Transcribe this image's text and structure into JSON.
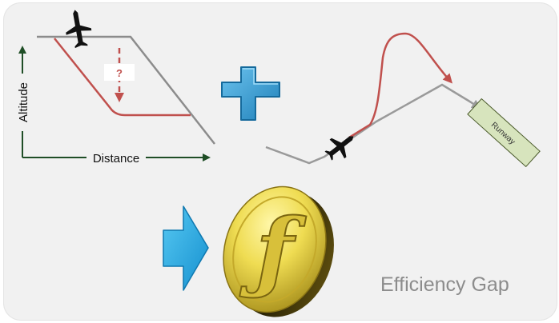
{
  "profile": {
    "y_axis_label": "Altitude",
    "x_axis_label": "Distance",
    "question_mark": "?"
  },
  "plus_sign": "+",
  "runway_label": "Runway",
  "coin_symbol": "ƒ",
  "caption": "Efficiency Gap",
  "colors": {
    "background": "#f1f1f1",
    "axis": "#1f4e26",
    "planned_path": "#8c8c8c",
    "actual_path": "#c0504d",
    "plus": "#2b8cc4",
    "arrow": "#22a7e0",
    "runway_fill": "#d7e4bd",
    "coin": "#e8d44a"
  },
  "icons": [
    "airplane-icon",
    "plus-icon",
    "right-arrow-icon",
    "coin-icon"
  ]
}
